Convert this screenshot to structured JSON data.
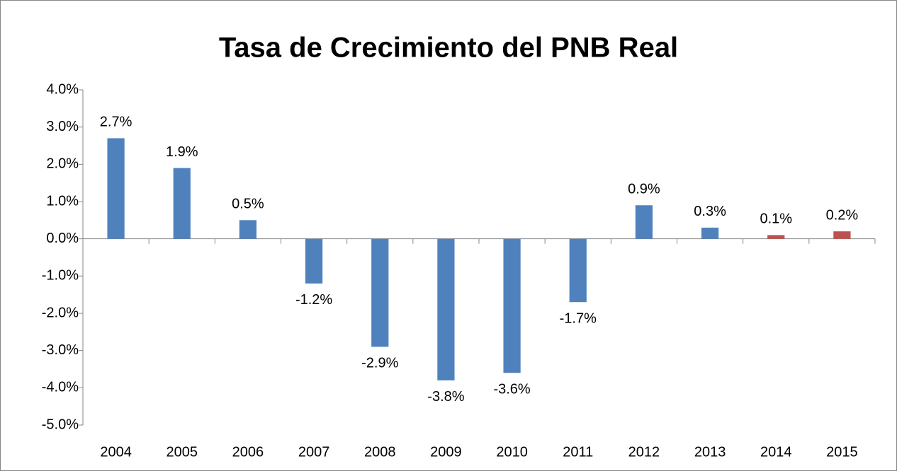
{
  "chart_data": {
    "type": "bar",
    "title": "Tasa de Crecimiento del PNB Real",
    "categories": [
      "2004",
      "2005",
      "2006",
      "2007",
      "2008",
      "2009",
      "2010",
      "2011",
      "2012",
      "2013",
      "2014",
      "2015"
    ],
    "values": [
      2.7,
      1.9,
      0.5,
      -1.2,
      -2.9,
      -3.8,
      -3.6,
      -1.7,
      0.9,
      0.3,
      0.1,
      0.2
    ],
    "value_labels": [
      "2.7%",
      "1.9%",
      "0.5%",
      "-1.2%",
      "-2.9%",
      "-3.8%",
      "-3.6%",
      "-1.7%",
      "0.9%",
      "0.3%",
      "0.1%",
      "0.2%"
    ],
    "colors": [
      "#4f81bd",
      "#4f81bd",
      "#4f81bd",
      "#4f81bd",
      "#4f81bd",
      "#4f81bd",
      "#4f81bd",
      "#4f81bd",
      "#4f81bd",
      "#4f81bd",
      "#c0504d",
      "#c0504d"
    ],
    "ylim": [
      -5,
      4
    ],
    "yticks": [
      {
        "value": 4,
        "label": "4.0%"
      },
      {
        "value": 3,
        "label": "3.0%"
      },
      {
        "value": 2,
        "label": "2.0%"
      },
      {
        "value": 1,
        "label": "1.0%"
      },
      {
        "value": 0,
        "label": "0.0%"
      },
      {
        "value": -1,
        "label": "-1.0%"
      },
      {
        "value": -2,
        "label": "-2.0%"
      },
      {
        "value": -3,
        "label": "-3.0%"
      },
      {
        "value": -4,
        "label": "-4.0%"
      },
      {
        "value": -5,
        "label": "-5.0%"
      }
    ],
    "grid": false
  }
}
